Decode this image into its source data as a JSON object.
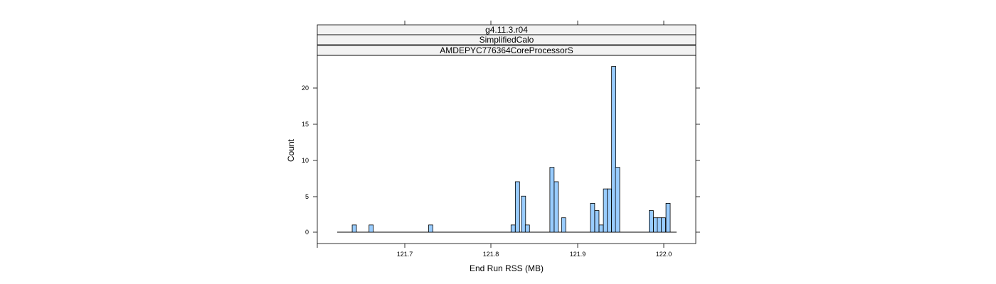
{
  "chart_data": {
    "type": "bar",
    "strips": [
      "g4.11.3.r04",
      "SimplifiedCalo",
      "AMDEPYC776364CoreProcessorS"
    ],
    "xlabel": "End Run RSS (MB)",
    "ylabel": "Count",
    "x_ticks": [
      "121.7",
      "121.8",
      "121.9",
      "122.0"
    ],
    "y_ticks": [
      "0",
      "5",
      "10",
      "15",
      "20"
    ],
    "xlim": [
      121.634,
      122.0
    ],
    "ylim": [
      -1.5,
      24
    ],
    "bin_width": 0.0049,
    "bar_color": "#99ccff",
    "bins": [
      {
        "x": 121.6415,
        "count": 1
      },
      {
        "x": 121.661,
        "count": 1
      },
      {
        "x": 121.73,
        "count": 1
      },
      {
        "x": 121.8255,
        "count": 1
      },
      {
        "x": 121.8305,
        "count": 7
      },
      {
        "x": 121.8375,
        "count": 5
      },
      {
        "x": 121.842,
        "count": 1
      },
      {
        "x": 121.8705,
        "count": 9
      },
      {
        "x": 121.8755,
        "count": 7
      },
      {
        "x": 121.884,
        "count": 2
      },
      {
        "x": 121.9175,
        "count": 4
      },
      {
        "x": 121.9225,
        "count": 3
      },
      {
        "x": 121.9275,
        "count": 1
      },
      {
        "x": 121.9325,
        "count": 6
      },
      {
        "x": 121.937,
        "count": 6
      },
      {
        "x": 121.942,
        "count": 23
      },
      {
        "x": 121.9465,
        "count": 9
      },
      {
        "x": 121.9855,
        "count": 3
      },
      {
        "x": 121.9905,
        "count": 2
      },
      {
        "x": 121.995,
        "count": 2
      },
      {
        "x": 121.9995,
        "count": 2
      },
      {
        "x": 122.005,
        "count": 4
      }
    ]
  }
}
